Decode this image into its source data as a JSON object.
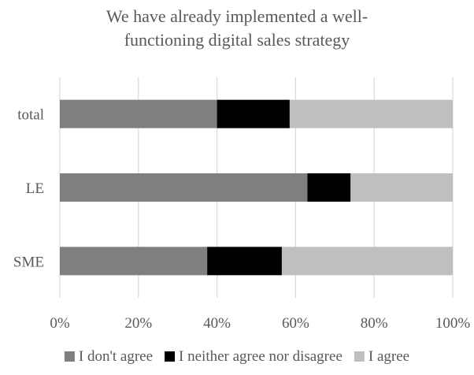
{
  "chart_data": {
    "type": "bar",
    "orientation": "horizontal",
    "stacked": true,
    "percent_stacked": true,
    "title_lines": [
      "We have already implemented a well-",
      "functioning digital sales strategy"
    ],
    "categories": [
      "total",
      "LE",
      "SME"
    ],
    "series": [
      {
        "name": "I don't agree",
        "values": [
          40,
          63,
          37.5
        ],
        "color": "#7f7f7f"
      },
      {
        "name": "I neither agree nor disagree",
        "values": [
          18.5,
          11,
          19
        ],
        "color": "#000000"
      },
      {
        "name": "I agree",
        "values": [
          41.5,
          26,
          43.5
        ],
        "color": "#bfbfbf"
      }
    ],
    "xlim": [
      0,
      100
    ],
    "x_ticks": [
      0,
      20,
      40,
      60,
      80,
      100
    ],
    "x_tick_labels": [
      "0%",
      "20%",
      "40%",
      "60%",
      "80%",
      "100%"
    ],
    "grid": true,
    "gridline_color": "#d9d9d9",
    "legend_position": "bottom"
  }
}
